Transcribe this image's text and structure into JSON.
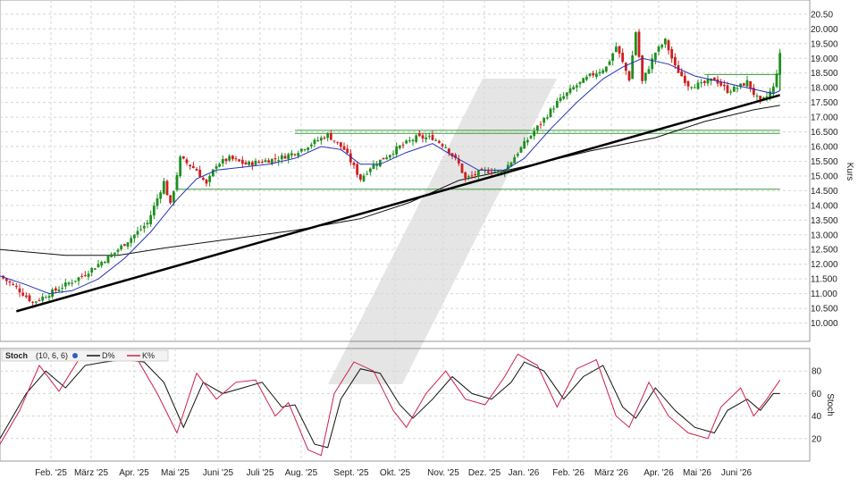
{
  "chart_data": [
    {
      "type": "candlestick",
      "panel": "price",
      "ylabel": "Kurs",
      "ylim": [
        9.5,
        20.8
      ],
      "y_ticks": [
        "20.50",
        "20.000",
        "19.500",
        "19.000",
        "18.500",
        "18.000",
        "17.500",
        "17.000",
        "16.500",
        "16.000",
        "15.500",
        "15.000",
        "14.500",
        "14.000",
        "13.500",
        "13.000",
        "12.500",
        "12.000",
        "11.500",
        "11.000",
        "10.500",
        "10.000"
      ],
      "x_labels": [
        "Feb. '25",
        "März '25",
        "Apr. '25",
        "Mai '25",
        "Juni '25",
        "Juli '25",
        "Aug. '25",
        "Sept. '25",
        "Okt. '25",
        "Nov. '25",
        "Dez. '25",
        "Jan. '26",
        "Feb. '26",
        "März '26",
        "Apr. '26",
        "Mai '26",
        "Juni '26"
      ],
      "close_path": [
        [
          0,
          11.6
        ],
        [
          5,
          11.2
        ],
        [
          10,
          10.7
        ],
        [
          15,
          11.0
        ],
        [
          20,
          11.3
        ],
        [
          25,
          11.6
        ],
        [
          30,
          12.0
        ],
        [
          35,
          12.4
        ],
        [
          40,
          12.9
        ],
        [
          45,
          13.4
        ],
        [
          50,
          14.8
        ],
        [
          52,
          14.0
        ],
        [
          55,
          15.6
        ],
        [
          60,
          15.2
        ],
        [
          63,
          14.7
        ],
        [
          66,
          15.4
        ],
        [
          70,
          15.6
        ],
        [
          75,
          15.4
        ],
        [
          80,
          15.5
        ],
        [
          85,
          15.6
        ],
        [
          90,
          15.8
        ],
        [
          95,
          16.1
        ],
        [
          100,
          16.4
        ],
        [
          105,
          15.9
        ],
        [
          108,
          15.3
        ],
        [
          110,
          14.9
        ],
        [
          113,
          15.3
        ],
        [
          117,
          15.6
        ],
        [
          122,
          16.0
        ],
        [
          127,
          16.3
        ],
        [
          132,
          16.3
        ],
        [
          136,
          16.0
        ],
        [
          140,
          15.4
        ],
        [
          142,
          14.9
        ],
        [
          146,
          15.1
        ],
        [
          150,
          15.2
        ],
        [
          153,
          15.1
        ],
        [
          156,
          15.5
        ],
        [
          160,
          16.1
        ],
        [
          165,
          16.8
        ],
        [
          170,
          17.5
        ],
        [
          175,
          18.0
        ],
        [
          180,
          18.4
        ],
        [
          185,
          18.7
        ],
        [
          188,
          19.4
        ],
        [
          192,
          18.3
        ],
        [
          194,
          19.9
        ],
        [
          196,
          18.2
        ],
        [
          200,
          19.2
        ],
        [
          203,
          19.6
        ],
        [
          206,
          18.7
        ],
        [
          210,
          18.1
        ],
        [
          214,
          18.1
        ],
        [
          218,
          18.3
        ],
        [
          222,
          17.9
        ],
        [
          225,
          18.0
        ],
        [
          228,
          18.2
        ],
        [
          230,
          17.8
        ],
        [
          232,
          17.5
        ],
        [
          234,
          17.7
        ],
        [
          236,
          18.0
        ],
        [
          238,
          19.1
        ]
      ],
      "ma_fast": [
        [
          0,
          11.6
        ],
        [
          8,
          11.3
        ],
        [
          15,
          11.0
        ],
        [
          22,
          11.1
        ],
        [
          30,
          11.5
        ],
        [
          38,
          12.2
        ],
        [
          46,
          13.1
        ],
        [
          54,
          14.2
        ],
        [
          60,
          14.9
        ],
        [
          66,
          15.2
        ],
        [
          74,
          15.3
        ],
        [
          82,
          15.4
        ],
        [
          90,
          15.6
        ],
        [
          98,
          16.0
        ],
        [
          104,
          15.9
        ],
        [
          110,
          15.4
        ],
        [
          116,
          15.4
        ],
        [
          124,
          15.8
        ],
        [
          132,
          16.1
        ],
        [
          138,
          15.7
        ],
        [
          146,
          15.2
        ],
        [
          154,
          15.2
        ],
        [
          160,
          15.6
        ],
        [
          168,
          16.6
        ],
        [
          176,
          17.5
        ],
        [
          184,
          18.3
        ],
        [
          190,
          18.7
        ],
        [
          196,
          19.0
        ],
        [
          204,
          18.8
        ],
        [
          212,
          18.4
        ],
        [
          220,
          18.2
        ],
        [
          228,
          18.0
        ],
        [
          232,
          17.9
        ],
        [
          236,
          17.8
        ],
        [
          238,
          17.9
        ]
      ],
      "ma_slow": [
        [
          0,
          12.5
        ],
        [
          20,
          12.3
        ],
        [
          36,
          12.3
        ],
        [
          50,
          12.55
        ],
        [
          70,
          12.85
        ],
        [
          90,
          13.15
        ],
        [
          110,
          13.55
        ],
        [
          125,
          14.1
        ],
        [
          140,
          14.85
        ],
        [
          155,
          15.2
        ],
        [
          165,
          15.45
        ],
        [
          180,
          15.85
        ],
        [
          200,
          16.3
        ],
        [
          215,
          16.85
        ],
        [
          230,
          17.25
        ],
        [
          238,
          17.4
        ]
      ],
      "trendline": [
        [
          5,
          10.4
        ],
        [
          238,
          17.75
        ]
      ],
      "resistance": [
        {
          "x": [
            90,
            238
          ],
          "y": 16.55
        },
        {
          "x": [
            90,
            238
          ],
          "y": 16.45
        },
        {
          "x": [
            54,
            238
          ],
          "y": 14.55
        },
        {
          "x": [
            215,
            238
          ],
          "y": 18.45
        }
      ],
      "colors": {
        "up": "#1e8f1e",
        "down": "#d01e1e",
        "fast": "#2433b8",
        "slow": "#111111",
        "level": "#3a9a3a",
        "trend": "#000000"
      }
    },
    {
      "type": "line",
      "panel": "stochastic",
      "title": "Stoch",
      "params": "(10, 6, 6)",
      "legend": [
        "D%",
        "K%"
      ],
      "ylabel": "Stoch",
      "ylim": [
        0,
        100
      ],
      "y_ticks": [
        "80",
        "60",
        "40",
        "20"
      ],
      "series": [
        {
          "name": "D%",
          "color": "#111111",
          "values": [
            [
              0,
              20
            ],
            [
              8,
              60
            ],
            [
              14,
              80
            ],
            [
              20,
              65
            ],
            [
              26,
              85
            ],
            [
              32,
              88
            ],
            [
              38,
              90
            ],
            [
              44,
              88
            ],
            [
              50,
              70
            ],
            [
              56,
              30
            ],
            [
              62,
              70
            ],
            [
              68,
              60
            ],
            [
              74,
              65
            ],
            [
              80,
              70
            ],
            [
              86,
              48
            ],
            [
              90,
              50
            ],
            [
              96,
              15
            ],
            [
              100,
              12
            ],
            [
              104,
              55
            ],
            [
              110,
              82
            ],
            [
              116,
              78
            ],
            [
              122,
              50
            ],
            [
              126,
              38
            ],
            [
              132,
              55
            ],
            [
              138,
              75
            ],
            [
              144,
              60
            ],
            [
              150,
              55
            ],
            [
              156,
              70
            ],
            [
              160,
              88
            ],
            [
              166,
              80
            ],
            [
              172,
              55
            ],
            [
              178,
              75
            ],
            [
              184,
              85
            ],
            [
              190,
              48
            ],
            [
              194,
              38
            ],
            [
              200,
              65
            ],
            [
              206,
              45
            ],
            [
              212,
              30
            ],
            [
              218,
              25
            ],
            [
              222,
              45
            ],
            [
              228,
              55
            ],
            [
              232,
              45
            ],
            [
              236,
              60
            ],
            [
              238,
              60
            ]
          ]
        },
        {
          "name": "K%",
          "color": "#cc1f4a",
          "values": [
            [
              0,
              15
            ],
            [
              6,
              45
            ],
            [
              12,
              85
            ],
            [
              18,
              62
            ],
            [
              24,
              90
            ],
            [
              30,
              92
            ],
            [
              36,
              95
            ],
            [
              42,
              90
            ],
            [
              48,
              60
            ],
            [
              54,
              25
            ],
            [
              60,
              78
            ],
            [
              66,
              55
            ],
            [
              72,
              70
            ],
            [
              78,
              72
            ],
            [
              84,
              40
            ],
            [
              88,
              52
            ],
            [
              94,
              10
            ],
            [
              98,
              5
            ],
            [
              102,
              60
            ],
            [
              108,
              88
            ],
            [
              114,
              80
            ],
            [
              120,
              45
            ],
            [
              124,
              30
            ],
            [
              130,
              60
            ],
            [
              136,
              80
            ],
            [
              142,
              55
            ],
            [
              148,
              50
            ],
            [
              154,
              75
            ],
            [
              158,
              95
            ],
            [
              164,
              85
            ],
            [
              170,
              48
            ],
            [
              176,
              82
            ],
            [
              182,
              90
            ],
            [
              188,
              40
            ],
            [
              192,
              30
            ],
            [
              198,
              70
            ],
            [
              204,
              40
            ],
            [
              210,
              25
            ],
            [
              216,
              20
            ],
            [
              220,
              48
            ],
            [
              226,
              65
            ],
            [
              230,
              40
            ],
            [
              234,
              55
            ],
            [
              238,
              72
            ]
          ]
        }
      ]
    }
  ]
}
